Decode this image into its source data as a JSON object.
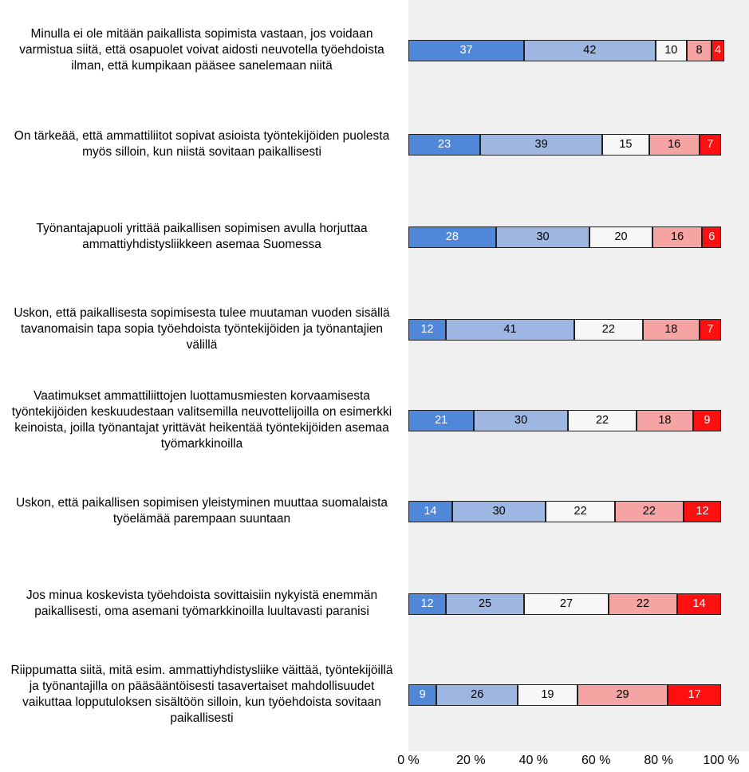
{
  "chart_data": {
    "type": "stacked-bar-horizontal",
    "categories": [
      "Minulla ei ole mitään paikallista sopimista vastaan, jos voidaan varmistua siitä, että osapuolet voivat aidosti neuvotella työehdoista ilman, että kumpikaan pääsee sanelemaan niitä",
      "On tärkeää, että ammattiliitot sopivat asioista työntekijöiden puolesta myös silloin, kun niistä sovitaan paikallisesti",
      "Työnantajapuoli yrittää paikallisen sopimisen avulla horjuttaa ammattiyhdistysliikkeen asemaa Suomessa",
      "Uskon, että paikallisesta sopimisesta tulee muutaman vuoden sisällä tavanomaisin tapa sopia työehdoista työntekijöiden ja työnantajien välillä",
      "Vaatimukset ammattiliittojen luottamusmiesten korvaamisesta työntekijöiden keskuudestaan valitsemilla neuvottelijoilla on esimerkki keinoista, joilla työnantajat yrittävät heikentää työntekijöiden asemaa työmarkkinoilla",
      "Uskon, että paikallisen sopimisen yleistyminen muuttaa suomalaista työelämää parempaan suuntaan",
      "Jos minua koskevista työehdoista sovittaisiin nykyistä enemmän paikallisesti, oma asemani työmarkkinoilla luultavasti paranisi",
      "Riippumatta siitä, mitä esim. ammattiyhdistysliike väittää, työntekijöillä ja työnantajilla on pääsääntöisesti tasavertaiset mahdollisuudet vaikuttaa lopputuloksen sisältöön silloin, kun työehdoista sovitaan paikallisesti"
    ],
    "series": [
      {
        "color": "#5087d8",
        "values": [
          37,
          23,
          28,
          12,
          21,
          14,
          12,
          9
        ]
      },
      {
        "color": "#9db7e2",
        "values": [
          42,
          39,
          30,
          41,
          30,
          30,
          25,
          26
        ]
      },
      {
        "color": "#f7f7f7",
        "values": [
          10,
          15,
          20,
          22,
          22,
          22,
          27,
          19
        ]
      },
      {
        "color": "#f5a3a3",
        "values": [
          8,
          16,
          16,
          18,
          18,
          22,
          22,
          29
        ]
      },
      {
        "color": "#ff1010",
        "values": [
          4,
          7,
          6,
          7,
          9,
          12,
          14,
          17
        ]
      }
    ],
    "xlim": [
      0,
      100
    ],
    "xticks": [
      {
        "value": 0,
        "label": "0 %"
      },
      {
        "value": 20,
        "label": "20 %"
      },
      {
        "value": 40,
        "label": "40 %"
      },
      {
        "value": 60,
        "label": "60 %"
      },
      {
        "value": 80,
        "label": "80 %"
      },
      {
        "value": 100,
        "label": "100 %"
      }
    ]
  }
}
